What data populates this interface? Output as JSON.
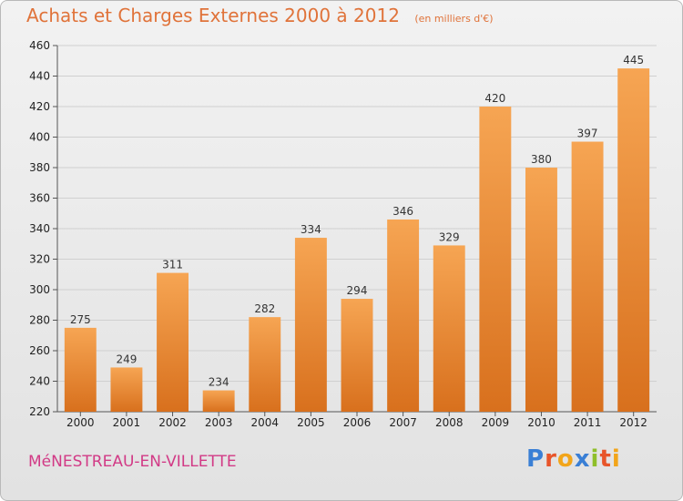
{
  "header": {
    "title": "Achats et Charges Externes 2000 à 2012",
    "unit": "(en milliers d'€)"
  },
  "footer": {
    "commune": "MéNESTREAU-EN-VILLETTE",
    "logo": "Proxiti"
  },
  "colors": {
    "bar_top": "#f6a553",
    "bar_bottom": "#d8701d",
    "title": "#e0733a",
    "commune": "#d23a86",
    "logo_letters": [
      "#3a7fd5",
      "#e8552a",
      "#f2a51a",
      "#3a7fd5",
      "#8fbf2a",
      "#e8552a",
      "#f2a51a"
    ]
  },
  "chart_data": {
    "type": "bar",
    "title": "Achats et Charges Externes 2000 à 2012",
    "xlabel": "",
    "ylabel": "",
    "categories": [
      "2000",
      "2001",
      "2002",
      "2003",
      "2004",
      "2005",
      "2006",
      "2007",
      "2008",
      "2009",
      "2010",
      "2011",
      "2012"
    ],
    "values": [
      275,
      249,
      311,
      234,
      282,
      334,
      294,
      346,
      329,
      420,
      380,
      397,
      445
    ],
    "ylim": [
      220,
      460
    ],
    "yticks": [
      220,
      240,
      260,
      280,
      300,
      320,
      340,
      360,
      380,
      400,
      420,
      440,
      460
    ],
    "grid": true,
    "legend": "none"
  }
}
